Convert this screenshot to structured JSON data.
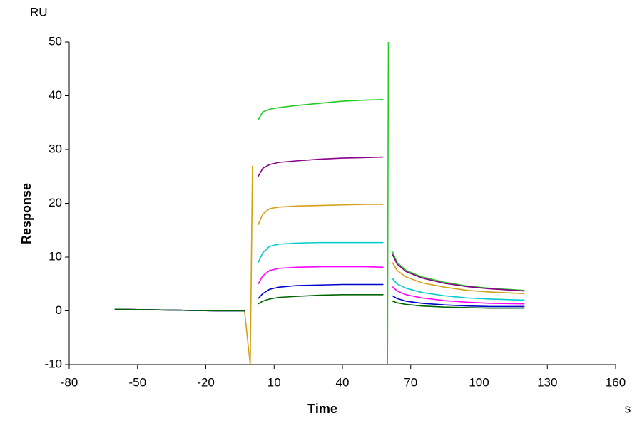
{
  "chart_data": {
    "type": "line",
    "xlabel": "Time",
    "ylabel": "Response",
    "x_unit": "s",
    "y_unit": "RU",
    "xlim": [
      -80,
      160
    ],
    "xticks": [
      -80,
      -50,
      -20,
      10,
      40,
      70,
      100,
      130,
      160
    ],
    "ylim": [
      -10,
      50
    ],
    "yticks": [
      -10,
      0,
      10,
      20,
      30,
      40,
      50
    ],
    "grid": false,
    "x": [
      -60,
      -45,
      -30,
      -15,
      -3,
      -0.5,
      0.5,
      1,
      3,
      5,
      8,
      12,
      20,
      30,
      40,
      50,
      58,
      59,
      59.8,
      60.2,
      61,
      62,
      64,
      68,
      75,
      85,
      95,
      105,
      120
    ],
    "series": [
      {
        "color": "#22cc22",
        "values": [
          0.3,
          0.2,
          0.1,
          0,
          0,
          null,
          null,
          null,
          35.5,
          37,
          37.5,
          37.8,
          38.2,
          38.6,
          39,
          39.2,
          39.3,
          null,
          -10,
          50,
          null,
          11,
          9,
          7.5,
          6.3,
          5.3,
          4.6,
          4.2,
          3.8
        ]
      },
      {
        "color": "#8b008b",
        "values": [
          0.3,
          0.2,
          0.1,
          0,
          0,
          null,
          null,
          null,
          25,
          26.5,
          27.2,
          27.6,
          27.9,
          28.2,
          28.4,
          28.5,
          28.6,
          null,
          null,
          null,
          null,
          10.5,
          8.7,
          7.3,
          6.1,
          5.1,
          4.5,
          4.1,
          3.7
        ]
      },
      {
        "color": "#d4a017",
        "values": [
          0.3,
          0.2,
          0.1,
          0,
          0,
          -10,
          27,
          null,
          16,
          18,
          19,
          19.3,
          19.5,
          19.6,
          19.7,
          19.8,
          19.8,
          null,
          null,
          null,
          null,
          9,
          7.5,
          6.3,
          5.2,
          4.4,
          3.8,
          3.5,
          3.2
        ]
      },
      {
        "color": "#00cccc",
        "values": [
          0.3,
          0.2,
          0.1,
          0,
          0,
          null,
          null,
          null,
          9,
          10.8,
          12,
          12.4,
          12.6,
          12.7,
          12.7,
          12.7,
          12.7,
          null,
          null,
          null,
          null,
          6,
          5,
          4.2,
          3.4,
          2.8,
          2.4,
          2.2,
          2
        ]
      },
      {
        "color": "#ff00ff",
        "values": [
          0.3,
          0.2,
          0.1,
          0,
          0,
          null,
          null,
          null,
          5,
          6.5,
          7.5,
          7.9,
          8.1,
          8.2,
          8.2,
          8.2,
          8.1,
          null,
          null,
          null,
          null,
          4.5,
          3.7,
          3,
          2.4,
          1.9,
          1.6,
          1.4,
          1.3
        ]
      },
      {
        "color": "#0000cc",
        "values": [
          0.3,
          0.2,
          0.1,
          0,
          0,
          null,
          null,
          null,
          2.3,
          3.2,
          4,
          4.4,
          4.7,
          4.8,
          4.9,
          4.9,
          4.9,
          null,
          null,
          null,
          null,
          2.8,
          2.3,
          1.8,
          1.4,
          1.1,
          0.9,
          0.8,
          0.8
        ]
      },
      {
        "color": "#006400",
        "values": [
          0.3,
          0.2,
          0.1,
          0,
          0,
          null,
          null,
          null,
          1.3,
          1.8,
          2.2,
          2.5,
          2.7,
          2.9,
          3,
          3,
          3,
          null,
          null,
          null,
          null,
          1.8,
          1.5,
          1.2,
          0.9,
          0.7,
          0.6,
          0.5,
          0.5
        ]
      }
    ]
  }
}
